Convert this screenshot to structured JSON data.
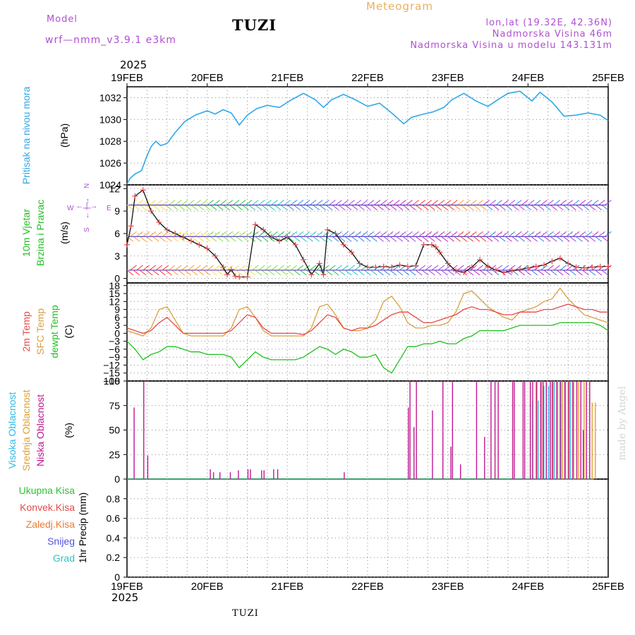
{
  "header": {
    "model_label": "Model",
    "model_name": "wrf—nmm_v3.9.1  e3km",
    "station": "TUZI",
    "product": "Meteogram",
    "lonlat": "lon,lat (19.32E, 42.36N)",
    "elevation": "Nadmorska Visina 46m",
    "model_elevation": "Nadmorska Visina u modelu 143.131m",
    "year_top": "2025",
    "year_bottom": "2025",
    "footer_station": "TUZI",
    "watermark": "made by Angel"
  },
  "dates": [
    "19FEB",
    "20FEB",
    "21FEB",
    "22FEB",
    "23FEB",
    "24FEB",
    "25FEB"
  ],
  "colors": {
    "pressure": "#30a8e8",
    "temp2m": "#e84848",
    "sfc": "#d8a040",
    "dewpt": "#20c020",
    "high": "#30b8e8",
    "mid": "#e0a030",
    "low": "#c01890",
    "wind_speed": "#000000",
    "wind_markers": "#e84848"
  },
  "chart_data": [
    {
      "type": "line",
      "panel": "pressure",
      "ylabel": "Pritisak na nivou mora",
      "unit": "(hPa)",
      "ylim": [
        1024,
        1033
      ],
      "yticks": [
        "1024",
        "1026",
        "1028",
        "1030",
        "1032"
      ],
      "x_days": [
        0,
        0.04,
        0.1,
        0.18,
        0.24,
        0.3,
        0.36,
        0.42,
        0.5,
        0.6,
        0.72,
        0.85,
        1.0,
        1.1,
        1.2,
        1.3,
        1.4,
        1.5,
        1.62,
        1.75,
        1.9,
        2.05,
        2.2,
        2.35,
        2.45,
        2.55,
        2.7,
        2.85,
        3.0,
        3.15,
        3.3,
        3.45,
        3.55,
        3.7,
        3.82,
        3.95,
        4.05,
        4.2,
        4.35,
        4.5,
        4.6,
        4.75,
        4.9,
        5.05,
        5.15,
        5.3,
        5.45,
        5.6,
        5.75,
        5.9,
        6.0
      ],
      "values": [
        1024.1,
        1024.6,
        1025.0,
        1025.3,
        1026.5,
        1027.5,
        1028.0,
        1027.6,
        1027.8,
        1028.8,
        1029.8,
        1030.4,
        1030.8,
        1030.5,
        1030.9,
        1030.6,
        1029.5,
        1030.4,
        1031.0,
        1031.3,
        1031.1,
        1031.8,
        1032.4,
        1031.8,
        1031.1,
        1031.8,
        1032.3,
        1031.8,
        1031.2,
        1031.5,
        1030.6,
        1029.6,
        1030.2,
        1030.5,
        1030.7,
        1031.1,
        1031.8,
        1032.4,
        1031.7,
        1031.2,
        1031.7,
        1032.4,
        1032.6,
        1031.7,
        1032.5,
        1031.6,
        1030.3,
        1030.4,
        1030.6,
        1030.4,
        1029.9
      ],
      "pressure_peak": "1032.6"
    },
    {
      "type": "line+wind-barbs",
      "panel": "wind",
      "ylabel": "10m Vjetar Brzina i Pravac",
      "unit": "(m/s)",
      "compass": "N <-|-> E",
      "compass_letters": [
        "N",
        "W",
        "E",
        "S"
      ],
      "ylim": [
        -0.6,
        12.5
      ],
      "yticks": [
        "0",
        "3",
        "6",
        "9",
        "12"
      ],
      "x_days": [
        0,
        0.05,
        0.1,
        0.2,
        0.3,
        0.4,
        0.5,
        0.6,
        0.7,
        0.8,
        0.9,
        1.0,
        1.1,
        1.2,
        1.25,
        1.3,
        1.35,
        1.4,
        1.5,
        1.6,
        1.7,
        1.8,
        1.9,
        2.0,
        2.1,
        2.2,
        2.3,
        2.4,
        2.45,
        2.5,
        2.6,
        2.7,
        2.8,
        2.9,
        3.0,
        3.1,
        3.2,
        3.3,
        3.4,
        3.5,
        3.6,
        3.7,
        3.8,
        3.85,
        3.9,
        4.0,
        4.1,
        4.2,
        4.3,
        4.4,
        4.5,
        4.6,
        4.7,
        4.8,
        4.9,
        5.0,
        5.1,
        5.2,
        5.3,
        5.4,
        5.5,
        5.6,
        5.7,
        5.8,
        5.9,
        6.0
      ],
      "speed": [
        4.5,
        7.0,
        11.0,
        11.8,
        9.0,
        7.5,
        6.5,
        6.0,
        5.5,
        5.0,
        4.5,
        4.0,
        3.0,
        1.5,
        0.5,
        1.2,
        0.3,
        0.2,
        0.2,
        7.2,
        6.5,
        5.5,
        5.0,
        5.5,
        4.5,
        2.5,
        0.5,
        2.0,
        0.5,
        6.5,
        6.0,
        4.5,
        3.5,
        2.0,
        1.5,
        1.5,
        1.6,
        1.5,
        1.8,
        1.6,
        1.7,
        4.5,
        4.5,
        4.2,
        3.5,
        2.0,
        1.0,
        0.8,
        1.5,
        2.5,
        1.6,
        1.1,
        0.8,
        1.0,
        1.2,
        1.4,
        1.6,
        1.8,
        2.3,
        2.7,
        2.0,
        1.5,
        1.4,
        1.5,
        1.6,
        1.6
      ],
      "barb_rows": [
        1.1,
        5.6,
        9.8
      ]
    },
    {
      "type": "line",
      "panel": "temperature",
      "ylabel_1": "2m Temp",
      "ylabel_2": "SFC Temp",
      "ylabel_3": "dewpt Temp",
      "unit": "(C)",
      "ylim": [
        -18,
        19
      ],
      "yticks": [
        "18",
        "15",
        "12",
        "9",
        "6",
        "3",
        "0",
        "−3",
        "−6",
        "−9",
        "−12",
        "−15",
        "−18"
      ],
      "x_days": [
        0,
        0.1,
        0.2,
        0.3,
        0.4,
        0.5,
        0.6,
        0.7,
        0.8,
        0.9,
        1.0,
        1.1,
        1.2,
        1.3,
        1.4,
        1.5,
        1.6,
        1.7,
        1.8,
        1.9,
        2.0,
        2.1,
        2.2,
        2.3,
        2.4,
        2.5,
        2.6,
        2.7,
        2.8,
        2.9,
        3.0,
        3.1,
        3.2,
        3.3,
        3.4,
        3.5,
        3.6,
        3.7,
        3.8,
        3.9,
        4.0,
        4.1,
        4.2,
        4.3,
        4.4,
        4.5,
        4.6,
        4.7,
        4.8,
        4.9,
        5.0,
        5.1,
        5.2,
        5.3,
        5.4,
        5.5,
        5.6,
        5.7,
        5.8,
        5.9,
        6.0
      ],
      "temp2m": [
        2,
        1,
        0,
        1,
        4,
        6,
        3,
        0,
        0,
        0,
        0,
        0,
        0,
        1,
        4,
        7,
        6,
        2,
        0,
        0,
        0,
        0,
        -0.5,
        1,
        4,
        7,
        6,
        2,
        1,
        2,
        2,
        3,
        5,
        7,
        8,
        8,
        6,
        4,
        4,
        5,
        6,
        7,
        9,
        10,
        9,
        9,
        8,
        7,
        7,
        8,
        8,
        8,
        9,
        9,
        10,
        11,
        10,
        9,
        9,
        8,
        8
      ],
      "sfc": [
        1,
        0,
        -1,
        2,
        9,
        10,
        5,
        0,
        -1,
        -1,
        -1,
        -1,
        -1,
        2,
        9,
        10,
        6,
        1,
        -1,
        -1,
        -1,
        -1,
        -1,
        2,
        10,
        11,
        7,
        2,
        1,
        1,
        2,
        5,
        12,
        14,
        10,
        4,
        2,
        2,
        3,
        3,
        4,
        8,
        15,
        16,
        13,
        10,
        8,
        6,
        5,
        8,
        9,
        10,
        12,
        13,
        17,
        13,
        10,
        7,
        6,
        5,
        4
      ],
      "dewpt": [
        -3,
        -6,
        -10,
        -8,
        -7,
        -5,
        -5,
        -6,
        -7,
        -7,
        -8,
        -8,
        -8,
        -9,
        -13,
        -10,
        -7,
        -9,
        -10,
        -10,
        -10,
        -10,
        -9,
        -7,
        -5,
        -6,
        -8,
        -6,
        -7,
        -9,
        -9,
        -8,
        -13,
        -15,
        -10,
        -5,
        -5,
        -4,
        -4,
        -3,
        -4,
        -4,
        -2,
        -1,
        1,
        1,
        1,
        1,
        2,
        3,
        3,
        3,
        3,
        3,
        4,
        4,
        4,
        4,
        4,
        3,
        1
      ]
    },
    {
      "type": "bar",
      "panel": "cloud",
      "ylabel_1": "Visoka Oblacnost",
      "ylabel_2": "Srednja Oblacnost",
      "ylabel_3": "Niska Oblacnost",
      "unit": "(%)",
      "ylim": [
        0,
        100
      ],
      "yticks": [
        "0",
        "25",
        "50",
        "75",
        "100"
      ],
      "low_x_days": [
        0.08,
        0.2,
        0.25,
        1.03,
        1.07,
        1.15,
        1.28,
        1.38,
        1.5,
        1.53,
        1.67,
        1.7,
        1.82,
        1.87,
        2.7,
        3.5,
        3.52,
        3.57,
        3.6,
        3.8,
        3.93,
        4.03,
        4.05,
        4.15,
        4.35,
        4.45,
        4.53,
        4.58,
        4.62,
        4.8,
        4.82,
        4.93,
        4.95,
        5.02,
        5.05,
        5.1,
        5.15,
        5.18,
        5.22,
        5.27,
        5.3,
        5.35,
        5.4,
        5.45,
        5.5,
        5.55,
        5.6,
        5.65,
        5.68,
        5.72,
        5.76
      ],
      "low_values": [
        73,
        100,
        24,
        10,
        7,
        7,
        7,
        9,
        10,
        10,
        9,
        9,
        10,
        10,
        7,
        73,
        100,
        53,
        100,
        70,
        100,
        33,
        100,
        15,
        100,
        43,
        100,
        100,
        100,
        100,
        100,
        100,
        100,
        100,
        100,
        100,
        100,
        100,
        100,
        100,
        100,
        100,
        100,
        100,
        100,
        100,
        100,
        100,
        50,
        100,
        100
      ],
      "mid_x_days": [
        5.03,
        5.1,
        5.17,
        5.23,
        5.3,
        5.37,
        5.43,
        5.5,
        5.57,
        5.63,
        5.7,
        5.77,
        5.8,
        5.84
      ],
      "mid_values": [
        100,
        100,
        100,
        100,
        100,
        100,
        100,
        100,
        100,
        100,
        100,
        100,
        78,
        78
      ],
      "high_x_days": [
        5.04,
        5.11,
        5.18,
        5.24,
        5.31,
        5.38,
        5.45,
        5.51
      ],
      "high_values": [
        80,
        80,
        95,
        95,
        100,
        100,
        100,
        100
      ]
    },
    {
      "type": "bar",
      "panel": "precip",
      "ylabel": "1hr Precip",
      "unit": "(mm)",
      "ylim": [
        0,
        1
      ],
      "yticks": [
        "0",
        "0.2",
        "0.4",
        "0.6",
        "0.8"
      ],
      "legend": [
        "Ukupna Kisa",
        "Konvek.Kisa",
        "Zaledj.Kisa",
        "Snijeg",
        "Grad"
      ],
      "legend_colors": [
        "#30c030",
        "#e84848",
        "#f07830",
        "#5050e0",
        "#30c0c0"
      ],
      "values": []
    }
  ]
}
